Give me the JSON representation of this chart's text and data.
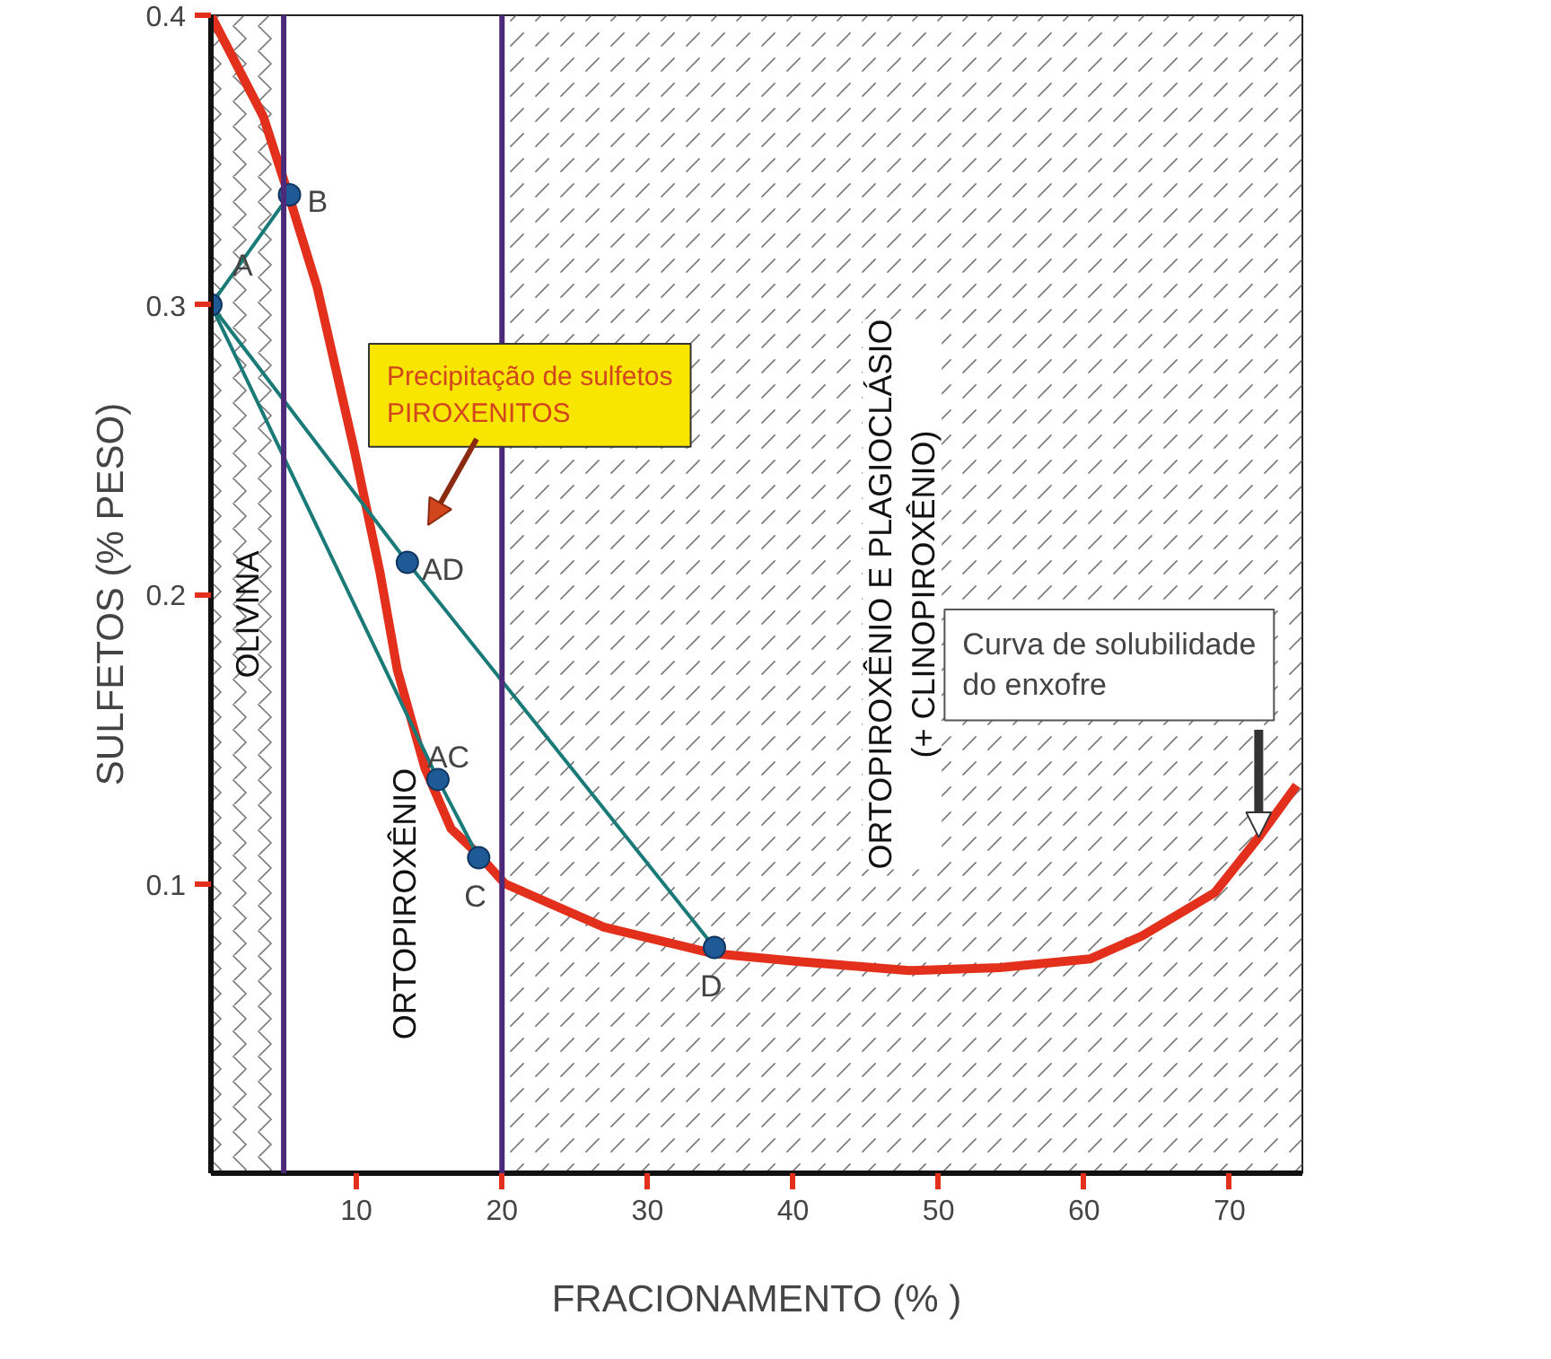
{
  "chart_data": {
    "type": "line",
    "xlabel": "FRACIONAMENTO (% )",
    "ylabel": "SULFETOS (% PESO)",
    "xlim": [
      0,
      75
    ],
    "ylim": [
      0,
      0.4
    ],
    "xticks": [
      10,
      20,
      30,
      40,
      50,
      60,
      70
    ],
    "yticks": [
      0.1,
      0.2,
      0.3,
      0.4
    ],
    "grid": false,
    "series": [
      {
        "color": "#e2301c",
        "x": [
          0,
          3.6,
          5.4,
          7.3,
          9.8,
          11.6,
          12.8,
          14.7,
          16.5,
          18.4,
          20.2,
          27,
          34.4,
          40.6,
          48,
          54.2,
          60.4,
          64,
          69,
          72,
          74.6
        ],
        "values": [
          0.4,
          0.365,
          0.337,
          0.306,
          0.251,
          0.208,
          0.174,
          0.14,
          0.119,
          0.11,
          0.1,
          0.085,
          0.076,
          0.073,
          0.07,
          0.071,
          0.074,
          0.082,
          0.097,
          0.116,
          0.134
        ]
      },
      {
        "color": "#1a7a78",
        "x": [
          0,
          5.4
        ],
        "values": [
          0.3,
          0.338
        ]
      },
      {
        "color": "#1a7a78",
        "x": [
          0,
          13.5,
          34.6
        ],
        "values": [
          0.3,
          0.211,
          0.078
        ]
      },
      {
        "color": "#1a7a78",
        "x": [
          0,
          15.6,
          18.4
        ],
        "values": [
          0.3,
          0.136,
          0.109
        ]
      },
      {
        "type": "scatter",
        "color": "#1f5a96",
        "marker": "circle",
        "x": [
          0,
          5.4,
          13.5,
          15.6,
          18.4,
          34.6
        ],
        "values": [
          0.3,
          0.338,
          0.211,
          0.136,
          0.109,
          0.078
        ]
      }
    ],
    "ref_lines": [
      {
        "axis": "x",
        "value": 5,
        "color": "#4b2a7a"
      },
      {
        "axis": "x",
        "value": 20,
        "color": "#4b2a7a"
      }
    ],
    "bands": [
      {
        "axis": "x",
        "from": 0,
        "to": 5,
        "label": "OLIVINA"
      },
      {
        "axis": "x",
        "from": 20,
        "to": 75,
        "label": "ORTOPIROXÊNIO E PLAGIOCLÁSIO\n(+ CLINOPIROXÊNIO)"
      }
    ],
    "annotations": [
      {
        "text": "A",
        "x": 0,
        "y": 0.3
      },
      {
        "text": "B",
        "x": 5.4,
        "y": 0.338
      },
      {
        "text": "AD",
        "x": 13.5,
        "y": 0.211
      },
      {
        "text": "AC",
        "x": 15.6,
        "y": 0.136
      },
      {
        "text": "C",
        "x": 18.4,
        "y": 0.109
      },
      {
        "text": "D",
        "x": 34.6,
        "y": 0.078
      },
      "Precipitação de sulfetos\n        PIROXENITOS",
      {
        "text": "Curva de solubilidade\ndo enxofre",
        "x": 72,
        "y": 0.116
      },
      "ORTOPIROXÊNIO"
    ]
  }
}
